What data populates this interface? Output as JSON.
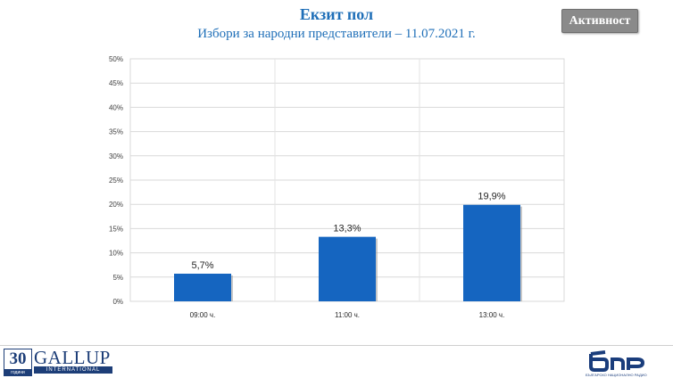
{
  "header": {
    "title": "Екзит пол",
    "subtitle": "Избори за народни представители – 11.07.2021 г.",
    "activity_button": "Активност"
  },
  "chart_data": {
    "type": "bar",
    "categories": [
      "09:00 ч.",
      "11:00 ч.",
      "13:00 ч."
    ],
    "values": [
      5.7,
      13.3,
      19.9
    ],
    "value_labels": [
      "5,7%",
      "13,3%",
      "19,9%"
    ],
    "y_ticks": [
      "0%",
      "5%",
      "10%",
      "15%",
      "20%",
      "25%",
      "30%",
      "35%",
      "40%",
      "45%",
      "50%"
    ],
    "ylim": [
      0,
      50
    ],
    "bar_color": "#1565c0",
    "grid": true
  },
  "footer": {
    "gallup_number": "30",
    "gallup_years": "години",
    "gallup_name": "GALLUP",
    "gallup_sub": "INTERNATIONAL",
    "bnr_logo": "бнр",
    "bnr_tagline": "БЪЛГАРСКО НАЦИОНАЛНО РАДИО"
  }
}
